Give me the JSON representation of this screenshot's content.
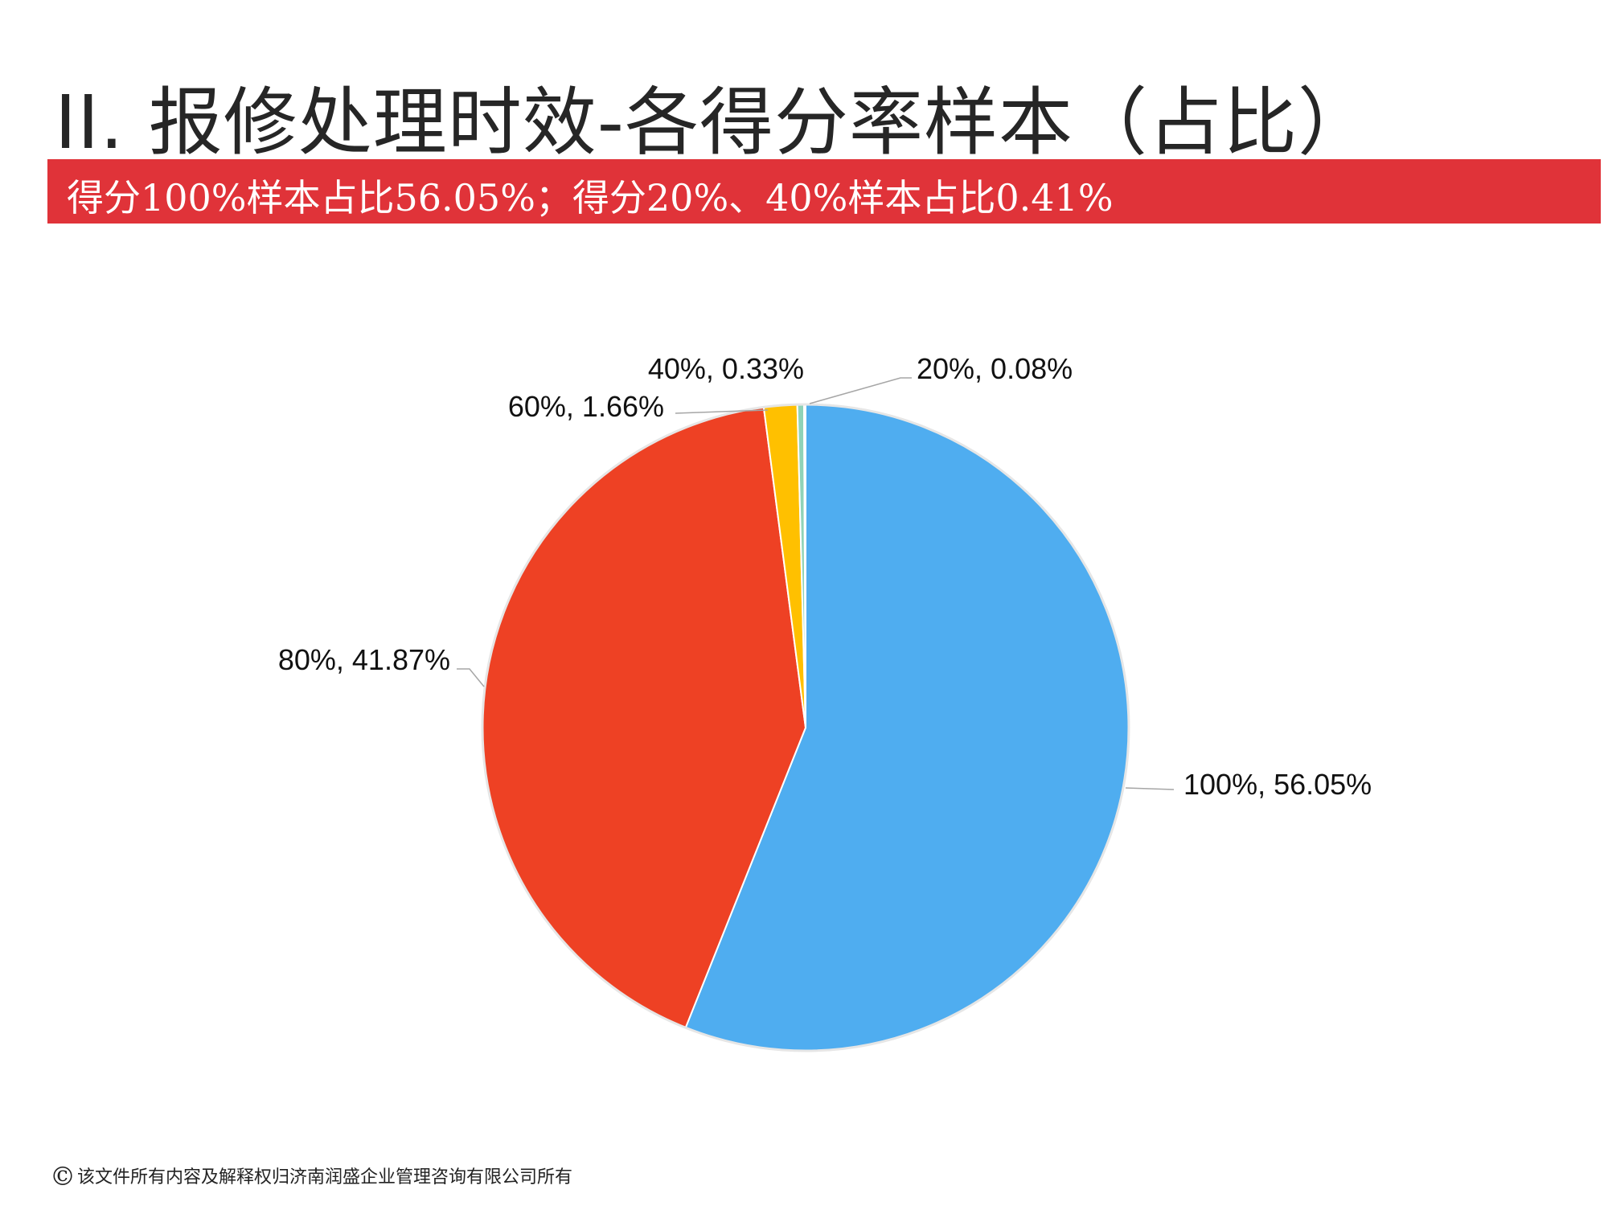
{
  "title": "II.  报修处理时效-各得分率样本（占比）",
  "banner": {
    "text": "得分100%样本占比56.05%；得分20%、40%样本占比0.41%",
    "color": "#e03339"
  },
  "chart_data": {
    "type": "pie",
    "slices": [
      {
        "category": "100%",
        "value": 56.05,
        "label": "100%, 56.05%",
        "color": "#4fadf0"
      },
      {
        "category": "80%",
        "value": 41.87,
        "label": "80%, 41.87%",
        "color": "#ee4124"
      },
      {
        "category": "60%",
        "value": 1.66,
        "label": "60%, 1.66%",
        "color": "#ffc000"
      },
      {
        "category": "40%",
        "value": 0.33,
        "label": "40%, 0.33%",
        "color": "#8fd3b8"
      },
      {
        "category": "20%",
        "value": 0.08,
        "label": "20%, 0.08%",
        "color": "#b7d8f5"
      }
    ],
    "start_angle": "12 o'clock",
    "direction": "clockwise",
    "legend": "none"
  },
  "footer": {
    "icon": "copyright-icon",
    "text": "该文件所有内容及解释权归济南润盛企业管理咨询有限公司所有"
  }
}
